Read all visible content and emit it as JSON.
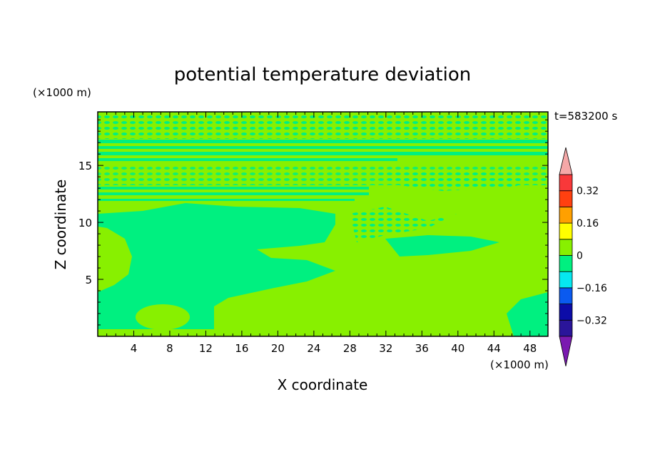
{
  "chart_data": {
    "type": "heatmap",
    "title": "potential temperature deviation",
    "xlabel": "X coordinate",
    "ylabel": "Z coordinate",
    "x_unit": "(×1000 m)",
    "y_unit": "(×1000 m)",
    "time_label": "t=583200 s",
    "xlim": [
      0,
      50
    ],
    "ylim": [
      0,
      19.7
    ],
    "x_ticks": [
      "4",
      "8",
      "12",
      "16",
      "20",
      "24",
      "28",
      "32",
      "36",
      "40",
      "44",
      "48"
    ],
    "y_ticks": [
      "5",
      "10",
      "15"
    ],
    "colorbar": {
      "levels": [
        -0.4,
        -0.32,
        -0.24,
        -0.16,
        -0.08,
        0,
        0.08,
        0.16,
        0.24,
        0.32,
        0.4
      ],
      "labels": [
        "0.32",
        "0.16",
        "0",
        "−0.16",
        "−0.32"
      ],
      "label_values": [
        0.32,
        0.16,
        0,
        -0.16,
        -0.32
      ],
      "colors": [
        "#5a0fa0",
        "#2a159a",
        "#0c0ca8",
        "#0a5af0",
        "#06e8f0",
        "#00f080",
        "#88f000",
        "#ffff00",
        "#ffa000",
        "#ff4010",
        "#f8383a",
        "#f5a8a8"
      ],
      "under_color": "#7a1ab0",
      "over_color": "#f5a8a8"
    },
    "field_colors": {
      "negative_small": "#00f080",
      "positive_small": "#88f000"
    }
  }
}
